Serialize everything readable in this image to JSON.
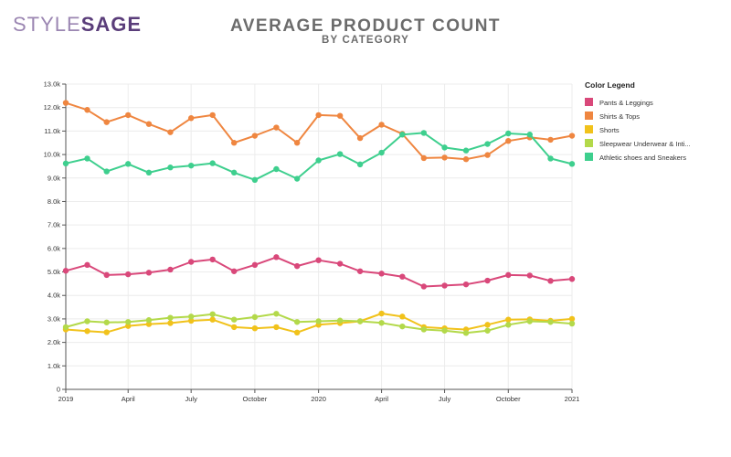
{
  "brand": {
    "logo_part1": "STYLE",
    "logo_part2": "SAGE"
  },
  "header": {
    "title": "AVERAGE PRODUCT COUNT",
    "subtitle": "BY CATEGORY"
  },
  "chart_data": {
    "type": "line",
    "title": "AVERAGE PRODUCT COUNT",
    "subtitle": "BY CATEGORY",
    "xlabel": "",
    "ylabel": "",
    "ylim": [
      0,
      13000
    ],
    "yticks": [
      {
        "value": 0,
        "label": "0"
      },
      {
        "value": 1000,
        "label": "1.0k"
      },
      {
        "value": 2000,
        "label": "2.0k"
      },
      {
        "value": 3000,
        "label": "3.0k"
      },
      {
        "value": 4000,
        "label": "4.0k"
      },
      {
        "value": 5000,
        "label": "5.0k"
      },
      {
        "value": 6000,
        "label": "6.0k"
      },
      {
        "value": 7000,
        "label": "7.0k"
      },
      {
        "value": 8000,
        "label": "8.0k"
      },
      {
        "value": 9000,
        "label": "9.0k"
      },
      {
        "value": 10000,
        "label": "10.0k"
      },
      {
        "value": 11000,
        "label": "11.0k"
      },
      {
        "value": 12000,
        "label": "12.0k"
      },
      {
        "value": 13000,
        "label": "13.0k"
      }
    ],
    "xlim": [
      "2019-01-01",
      "2021-01-01"
    ],
    "xticks": [
      {
        "date": "2019-01-01",
        "label": "2019"
      },
      {
        "date": "2019-04-01",
        "label": "April"
      },
      {
        "date": "2019-07-01",
        "label": "July"
      },
      {
        "date": "2019-10-01",
        "label": "October"
      },
      {
        "date": "2020-01-01",
        "label": "2020"
      },
      {
        "date": "2020-04-01",
        "label": "April"
      },
      {
        "date": "2020-07-01",
        "label": "July"
      },
      {
        "date": "2020-10-01",
        "label": "October"
      },
      {
        "date": "2021-01-01",
        "label": "2021"
      }
    ],
    "x": [
      "2019-01-01",
      "2019-02-01",
      "2019-03-01",
      "2019-04-01",
      "2019-05-01",
      "2019-06-01",
      "2019-07-01",
      "2019-08-01",
      "2019-09-01",
      "2019-10-01",
      "2019-11-01",
      "2019-12-01",
      "2020-01-01",
      "2020-02-01",
      "2020-03-01",
      "2020-04-01",
      "2020-05-01",
      "2020-06-01",
      "2020-07-01",
      "2020-08-01",
      "2020-09-01",
      "2020-10-01",
      "2020-11-01",
      "2020-12-01",
      "2021-01-01"
    ],
    "grid": true,
    "legend_title": "Color Legend",
    "legend_position": "top-right",
    "series": [
      {
        "name": "Pants & Leggings",
        "color": "#d9487a",
        "values": [
          5050,
          5300,
          4870,
          4900,
          4970,
          5100,
          5430,
          5530,
          5030,
          5300,
          5630,
          5250,
          5500,
          5350,
          5030,
          4930,
          4800,
          4380,
          4420,
          4470,
          4630,
          4870,
          4850,
          4620,
          4700
        ]
      },
      {
        "name": "Shirts & Tops",
        "color": "#ef8640",
        "values": [
          12200,
          11900,
          11380,
          11680,
          11300,
          10950,
          11550,
          11680,
          10500,
          10800,
          11150,
          10500,
          11680,
          11650,
          10700,
          11270,
          10880,
          9850,
          9870,
          9800,
          9980,
          10580,
          10730,
          10630,
          10800
        ]
      },
      {
        "name": "Shorts",
        "color": "#f1c21b",
        "values": [
          2550,
          2480,
          2430,
          2700,
          2780,
          2820,
          2920,
          2970,
          2650,
          2600,
          2650,
          2420,
          2750,
          2820,
          2900,
          3230,
          3100,
          2650,
          2600,
          2550,
          2750,
          2970,
          2980,
          2920,
          3000
        ]
      },
      {
        "name": "Sleepwear Underwear & Inti...",
        "color": "#b3d94a",
        "values": [
          2650,
          2900,
          2850,
          2870,
          2950,
          3050,
          3100,
          3200,
          2970,
          3080,
          3220,
          2870,
          2900,
          2930,
          2900,
          2830,
          2680,
          2550,
          2500,
          2400,
          2500,
          2750,
          2900,
          2870,
          2800
        ]
      },
      {
        "name": "Athletic shoes and Sneakers",
        "color": "#3ecf8e",
        "values": [
          9620,
          9830,
          9280,
          9600,
          9230,
          9450,
          9530,
          9630,
          9230,
          8920,
          9380,
          8970,
          9750,
          10020,
          9580,
          10080,
          10850,
          10920,
          10300,
          10170,
          10450,
          10900,
          10850,
          9830,
          9600
        ]
      }
    ]
  }
}
